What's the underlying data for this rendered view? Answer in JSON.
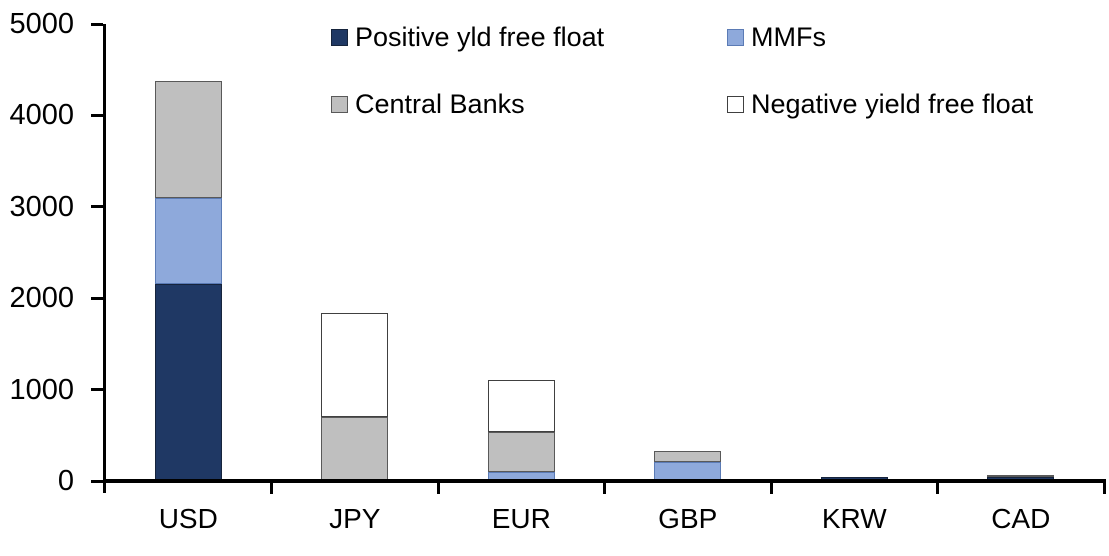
{
  "chart_data": {
    "type": "bar",
    "stacked": true,
    "title": "",
    "xlabel": "",
    "ylabel": "",
    "grid": false,
    "legend_position": "top",
    "ylim": [
      0,
      5000
    ],
    "yticks": [
      0,
      1000,
      2000,
      3000,
      4000,
      5000
    ],
    "categories": [
      "USD",
      "JPY",
      "EUR",
      "GBP",
      "KRW",
      "CAD"
    ],
    "series": [
      {
        "name": "Positive yld free float",
        "color": "#1F3864",
        "border": "#16243C",
        "values": [
          2150,
          0,
          0,
          0,
          45,
          40
        ]
      },
      {
        "name": "MMFs",
        "color": "#8EA9DB",
        "border": "#5B7BB5",
        "values": [
          950,
          0,
          100,
          210,
          0,
          0
        ]
      },
      {
        "name": "Central Banks",
        "color": "#BFBFBF",
        "border": "#595959",
        "values": [
          1280,
          700,
          435,
          120,
          0,
          30
        ]
      },
      {
        "name": "Negative yield free float",
        "color": "#FFFFFF",
        "border": "#404040",
        "values": [
          0,
          1140,
          575,
          0,
          0,
          0
        ]
      }
    ],
    "approx_totals": {
      "USD": 4380,
      "JPY": 1840,
      "EUR": 1110,
      "GBP": 330,
      "KRW": 45,
      "CAD": 70
    }
  }
}
